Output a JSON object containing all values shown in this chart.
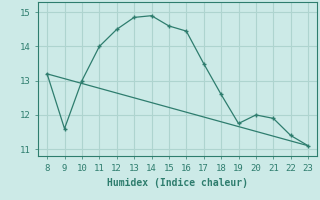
{
  "x": [
    8,
    9,
    10,
    11,
    12,
    13,
    14,
    15,
    16,
    17,
    18,
    19,
    20,
    21,
    22,
    23
  ],
  "y": [
    13.2,
    11.6,
    13.0,
    14.0,
    14.5,
    14.85,
    14.9,
    14.6,
    14.45,
    13.5,
    12.6,
    11.75,
    12.0,
    11.9,
    11.4,
    11.1
  ],
  "trend_x": [
    8,
    23
  ],
  "trend_y": [
    13.2,
    11.1
  ],
  "xlabel": "Humidex (Indice chaleur)",
  "xlim": [
    7.5,
    23.5
  ],
  "ylim": [
    10.8,
    15.3
  ],
  "xticks": [
    8,
    9,
    10,
    11,
    12,
    13,
    14,
    15,
    16,
    17,
    18,
    19,
    20,
    21,
    22,
    23
  ],
  "yticks": [
    11,
    12,
    13,
    14,
    15
  ],
  "line_color": "#2e7d6e",
  "bg_color": "#cceae7",
  "grid_color": "#aed4cf"
}
